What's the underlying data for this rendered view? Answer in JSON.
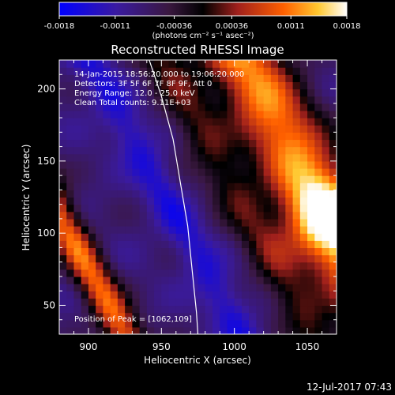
{
  "chart_data": {
    "type": "heatmap",
    "title": "Reconstructed RHESSI Image",
    "xlabel": "Heliocentric X (arcsec)",
    "ylabel": "Heliocentric Y (arcsec)",
    "xlim": [
      880,
      1070
    ],
    "ylim": [
      30,
      220
    ],
    "x_ticks": [
      900,
      950,
      1000,
      1050
    ],
    "y_ticks": [
      50,
      100,
      150,
      200
    ],
    "x_tick_labels": [
      "900",
      "950",
      "1000",
      "1050"
    ],
    "y_tick_labels": [
      "50",
      "100",
      "150",
      "200"
    ],
    "colorbar": {
      "range": [
        -0.0018,
        0.0018
      ],
      "ticks": [
        -0.0018,
        -0.0011,
        -0.00036,
        0.00036,
        0.0011,
        0.0018
      ],
      "tick_labels": [
        "-0.0018",
        "-0.0011",
        "-0.00036",
        "0.00036",
        "0.0011",
        "0.0018"
      ],
      "unit_label": "(photons cm⁻² s⁻¹ asec⁻²)"
    },
    "annotations": [
      "14-Jan-2015 18:56:20.000 to 19:06:20.000",
      "Detectors: 3F 5F 6F 7F 8F 9F, Att 0",
      "Energy Range: 12.0 - 25.0 keV",
      "Clean    Total counts: 9.11E+03"
    ],
    "peak_label": "Position of Peak = [1062,109]",
    "peak": [
      1062,
      109
    ],
    "limb_curve": [
      [
        940,
        225
      ],
      [
        950,
        195
      ],
      [
        958,
        165
      ],
      [
        963,
        135
      ],
      [
        968,
        105
      ],
      [
        971,
        75
      ],
      [
        974,
        45
      ],
      [
        975,
        30
      ]
    ],
    "grid": false,
    "legend": "none"
  },
  "footer": {
    "date": "12-Jul-2017 07:43"
  }
}
